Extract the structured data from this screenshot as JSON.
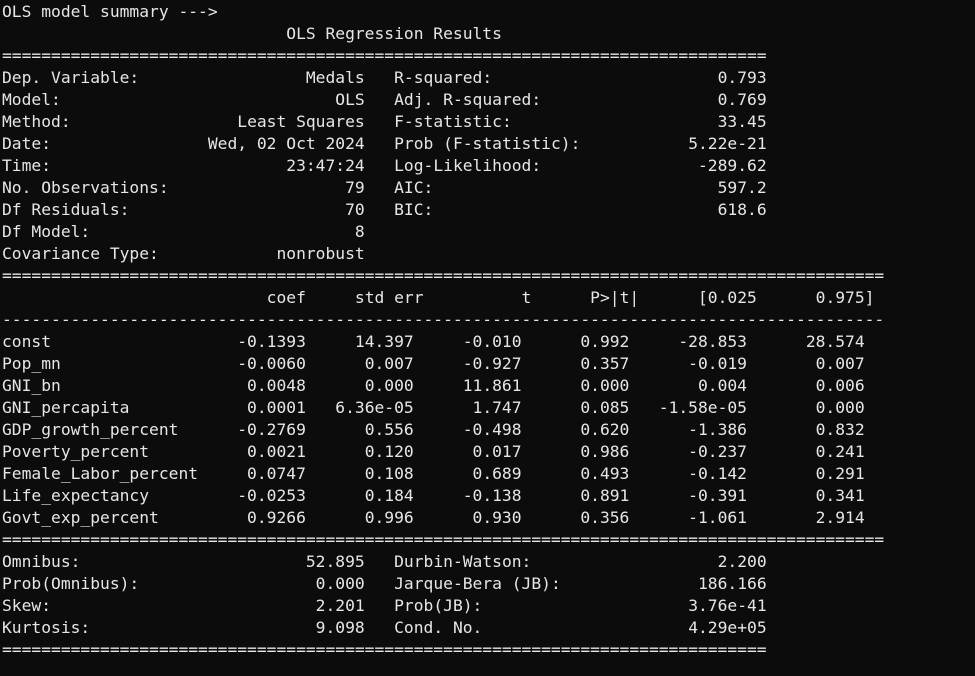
{
  "console": {
    "prompt": "OLS model summary --->",
    "title": "OLS Regression Results"
  },
  "summary_left": [
    {
      "label": "Dep. Variable:",
      "value": "Medals"
    },
    {
      "label": "Model:",
      "value": "OLS"
    },
    {
      "label": "Method:",
      "value": "Least Squares"
    },
    {
      "label": "Date:",
      "value": "Wed, 02 Oct 2024"
    },
    {
      "label": "Time:",
      "value": "23:47:24"
    },
    {
      "label": "No. Observations:",
      "value": "79"
    },
    {
      "label": "Df Residuals:",
      "value": "70"
    },
    {
      "label": "Df Model:",
      "value": "8"
    },
    {
      "label": "Covariance Type:",
      "value": "nonrobust"
    }
  ],
  "summary_right": [
    {
      "label": "R-squared:",
      "value": "0.793"
    },
    {
      "label": "Adj. R-squared:",
      "value": "0.769"
    },
    {
      "label": "F-statistic:",
      "value": "33.45"
    },
    {
      "label": "Prob (F-statistic):",
      "value": "5.22e-21"
    },
    {
      "label": "Log-Likelihood:",
      "value": "-289.62"
    },
    {
      "label": "AIC:",
      "value": "597.2"
    },
    {
      "label": "BIC:",
      "value": "618.6"
    }
  ],
  "coef_table": {
    "headers": [
      "coef",
      "std err",
      "t",
      "P>|t|",
      "[0.025",
      "0.975]"
    ],
    "rows": [
      {
        "name": "const",
        "values": [
          "-0.1393",
          "14.397",
          "-0.010",
          "0.992",
          "-28.853",
          "28.574"
        ]
      },
      {
        "name": "Pop_mn",
        "values": [
          "-0.0060",
          "0.007",
          "-0.927",
          "0.357",
          "-0.019",
          "0.007"
        ]
      },
      {
        "name": "GNI_bn",
        "values": [
          "0.0048",
          "0.000",
          "11.861",
          "0.000",
          "0.004",
          "0.006"
        ]
      },
      {
        "name": "GNI_percapita",
        "values": [
          "0.0001",
          "6.36e-05",
          "1.747",
          "0.085",
          "-1.58e-05",
          "0.000"
        ]
      },
      {
        "name": "GDP_growth_percent",
        "values": [
          "-0.2769",
          "0.556",
          "-0.498",
          "0.620",
          "-1.386",
          "0.832"
        ]
      },
      {
        "name": "Poverty_percent",
        "values": [
          "0.0021",
          "0.120",
          "0.017",
          "0.986",
          "-0.237",
          "0.241"
        ]
      },
      {
        "name": "Female_Labor_percent",
        "values": [
          "0.0747",
          "0.108",
          "0.689",
          "0.493",
          "-0.142",
          "0.291"
        ]
      },
      {
        "name": "Life_expectancy",
        "values": [
          "-0.0253",
          "0.184",
          "-0.138",
          "0.891",
          "-0.391",
          "0.341"
        ]
      },
      {
        "name": "Govt_exp_percent",
        "values": [
          "0.9266",
          "0.996",
          "0.930",
          "0.356",
          "-1.061",
          "2.914"
        ]
      }
    ]
  },
  "diagnostics_left": [
    {
      "label": "Omnibus:",
      "value": "52.895"
    },
    {
      "label": "Prob(Omnibus):",
      "value": "0.000"
    },
    {
      "label": "Skew:",
      "value": "2.201"
    },
    {
      "label": "Kurtosis:",
      "value": "9.098"
    }
  ],
  "diagnostics_right": [
    {
      "label": "Durbin-Watson:",
      "value": "2.200"
    },
    {
      "label": "Jarque-Bera (JB):",
      "value": "186.166"
    },
    {
      "label": "Prob(JB):",
      "value": "3.76e-41"
    },
    {
      "label": "Cond. No.",
      "value": "4.29e+05"
    }
  ]
}
